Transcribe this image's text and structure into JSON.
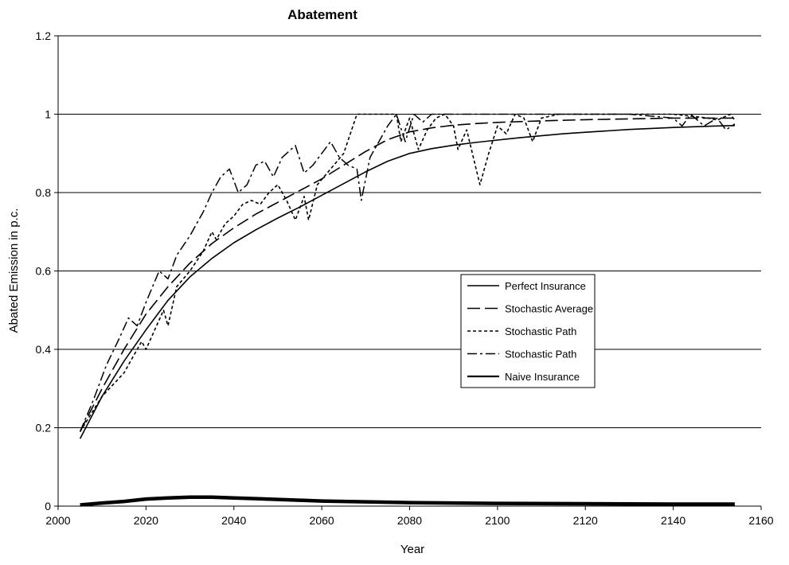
{
  "chart_data": {
    "type": "line",
    "title": "Abatement",
    "xlabel": "Year",
    "ylabel": "Abated Emission in p.c.",
    "xlim": [
      2000,
      2160
    ],
    "ylim": [
      0,
      1.2
    ],
    "x_ticks": [
      2000,
      2020,
      2040,
      2060,
      2080,
      2100,
      2120,
      2140,
      2160
    ],
    "y_ticks": [
      0,
      0.2,
      0.4,
      0.6,
      0.8,
      1,
      1.2
    ],
    "y_tick_labels": [
      "0",
      "0.2",
      "0.4",
      "0.6",
      "0.8",
      "1",
      "1.2"
    ],
    "grid": "horizontal",
    "legend_position": "center-right",
    "series": [
      {
        "name": "Perfect Insurance",
        "style": "solid",
        "color": "#000000",
        "points": [
          [
            2005,
            0.172
          ],
          [
            2010,
            0.28
          ],
          [
            2015,
            0.37
          ],
          [
            2020,
            0.45
          ],
          [
            2025,
            0.525
          ],
          [
            2030,
            0.585
          ],
          [
            2035,
            0.632
          ],
          [
            2040,
            0.672
          ],
          [
            2045,
            0.705
          ],
          [
            2050,
            0.735
          ],
          [
            2055,
            0.763
          ],
          [
            2060,
            0.793
          ],
          [
            2065,
            0.823
          ],
          [
            2070,
            0.853
          ],
          [
            2075,
            0.88
          ],
          [
            2080,
            0.9
          ],
          [
            2085,
            0.912
          ],
          [
            2090,
            0.921
          ],
          [
            2095,
            0.928
          ],
          [
            2100,
            0.934
          ],
          [
            2105,
            0.94
          ],
          [
            2110,
            0.945
          ],
          [
            2115,
            0.95
          ],
          [
            2120,
            0.954
          ],
          [
            2130,
            0.961
          ],
          [
            2140,
            0.966
          ],
          [
            2150,
            0.97
          ],
          [
            2154,
            0.971
          ]
        ]
      },
      {
        "name": "Stochastic Average",
        "style": "long-dash",
        "color": "#000000",
        "points": [
          [
            2005,
            0.19
          ],
          [
            2010,
            0.3
          ],
          [
            2015,
            0.4
          ],
          [
            2020,
            0.49
          ],
          [
            2025,
            0.56
          ],
          [
            2030,
            0.62
          ],
          [
            2035,
            0.67
          ],
          [
            2040,
            0.71
          ],
          [
            2045,
            0.745
          ],
          [
            2050,
            0.775
          ],
          [
            2055,
            0.805
          ],
          [
            2060,
            0.835
          ],
          [
            2065,
            0.87
          ],
          [
            2070,
            0.905
          ],
          [
            2075,
            0.935
          ],
          [
            2080,
            0.955
          ],
          [
            2085,
            0.965
          ],
          [
            2090,
            0.972
          ],
          [
            2095,
            0.976
          ],
          [
            2100,
            0.979
          ],
          [
            2110,
            0.983
          ],
          [
            2120,
            0.986
          ],
          [
            2130,
            0.988
          ],
          [
            2140,
            0.99
          ],
          [
            2150,
            0.99
          ],
          [
            2154,
            0.99
          ]
        ]
      },
      {
        "name": "Stochastic Path",
        "style": "short-dash",
        "color": "#000000",
        "points": [
          [
            2005,
            0.19
          ],
          [
            2010,
            0.28
          ],
          [
            2015,
            0.34
          ],
          [
            2017,
            0.38
          ],
          [
            2019,
            0.42
          ],
          [
            2020,
            0.4
          ],
          [
            2022,
            0.45
          ],
          [
            2024,
            0.5
          ],
          [
            2025,
            0.46
          ],
          [
            2027,
            0.56
          ],
          [
            2030,
            0.6
          ],
          [
            2033,
            0.65
          ],
          [
            2035,
            0.7
          ],
          [
            2036,
            0.68
          ],
          [
            2038,
            0.72
          ],
          [
            2040,
            0.74
          ],
          [
            2042,
            0.77
          ],
          [
            2044,
            0.78
          ],
          [
            2046,
            0.77
          ],
          [
            2048,
            0.8
          ],
          [
            2050,
            0.82
          ],
          [
            2052,
            0.78
          ],
          [
            2054,
            0.73
          ],
          [
            2056,
            0.79
          ],
          [
            2057,
            0.73
          ],
          [
            2059,
            0.82
          ],
          [
            2062,
            0.86
          ],
          [
            2065,
            0.9
          ],
          [
            2068,
            1.0
          ],
          [
            2072,
            1.0
          ],
          [
            2075,
            1.0
          ],
          [
            2077,
            1.0
          ],
          [
            2078,
            0.93
          ],
          [
            2080,
            0.99
          ],
          [
            2082,
            0.91
          ],
          [
            2084,
            0.96
          ],
          [
            2086,
            0.99
          ],
          [
            2088,
            1.0
          ],
          [
            2090,
            0.97
          ],
          [
            2091,
            0.91
          ],
          [
            2093,
            0.96
          ],
          [
            2096,
            0.82
          ],
          [
            2098,
            0.9
          ],
          [
            2100,
            0.97
          ],
          [
            2102,
            0.95
          ],
          [
            2104,
            1.0
          ],
          [
            2106,
            0.99
          ],
          [
            2108,
            0.93
          ],
          [
            2110,
            0.99
          ],
          [
            2114,
            1.0
          ],
          [
            2120,
            1.0
          ],
          [
            2130,
            1.0
          ],
          [
            2140,
            1.0
          ],
          [
            2148,
            0.99
          ],
          [
            2150,
            0.985
          ],
          [
            2153,
            1.0
          ],
          [
            2154,
            0.985
          ]
        ]
      },
      {
        "name": "Stochastic Path",
        "style": "dash-dot",
        "color": "#000000",
        "points": [
          [
            2005,
            0.19
          ],
          [
            2008,
            0.27
          ],
          [
            2011,
            0.36
          ],
          [
            2014,
            0.43
          ],
          [
            2016,
            0.48
          ],
          [
            2018,
            0.46
          ],
          [
            2020,
            0.52
          ],
          [
            2023,
            0.6
          ],
          [
            2025,
            0.58
          ],
          [
            2027,
            0.64
          ],
          [
            2030,
            0.69
          ],
          [
            2033,
            0.75
          ],
          [
            2035,
            0.8
          ],
          [
            2037,
            0.84
          ],
          [
            2039,
            0.86
          ],
          [
            2041,
            0.8
          ],
          [
            2043,
            0.82
          ],
          [
            2045,
            0.87
          ],
          [
            2047,
            0.88
          ],
          [
            2049,
            0.84
          ],
          [
            2051,
            0.89
          ],
          [
            2053,
            0.91
          ],
          [
            2054,
            0.92
          ],
          [
            2056,
            0.85
          ],
          [
            2058,
            0.87
          ],
          [
            2060,
            0.9
          ],
          [
            2062,
            0.93
          ],
          [
            2064,
            0.89
          ],
          [
            2066,
            0.87
          ],
          [
            2068,
            0.86
          ],
          [
            2069,
            0.78
          ],
          [
            2071,
            0.89
          ],
          [
            2073,
            0.93
          ],
          [
            2075,
            0.97
          ],
          [
            2077,
            1.0
          ],
          [
            2079,
            0.93
          ],
          [
            2081,
            1.0
          ],
          [
            2083,
            0.98
          ],
          [
            2085,
            1.0
          ],
          [
            2090,
            1.0
          ],
          [
            2100,
            1.0
          ],
          [
            2110,
            1.0
          ],
          [
            2120,
            1.0
          ],
          [
            2130,
            1.0
          ],
          [
            2140,
            0.99
          ],
          [
            2142,
            0.97
          ],
          [
            2144,
            1.0
          ],
          [
            2147,
            0.97
          ],
          [
            2150,
            0.99
          ],
          [
            2152,
            0.96
          ],
          [
            2154,
            0.975
          ]
        ]
      },
      {
        "name": "Naive Insurance",
        "style": "thick-solid",
        "color": "#000000",
        "points": [
          [
            2005,
            0.003
          ],
          [
            2010,
            0.008
          ],
          [
            2015,
            0.012
          ],
          [
            2020,
            0.018
          ],
          [
            2025,
            0.021
          ],
          [
            2030,
            0.023
          ],
          [
            2035,
            0.023
          ],
          [
            2040,
            0.021
          ],
          [
            2045,
            0.019
          ],
          [
            2050,
            0.017
          ],
          [
            2055,
            0.015
          ],
          [
            2060,
            0.013
          ],
          [
            2065,
            0.012
          ],
          [
            2070,
            0.011
          ],
          [
            2080,
            0.009
          ],
          [
            2090,
            0.008
          ],
          [
            2100,
            0.007
          ],
          [
            2120,
            0.006
          ],
          [
            2140,
            0.005
          ],
          [
            2154,
            0.005
          ]
        ]
      }
    ]
  }
}
